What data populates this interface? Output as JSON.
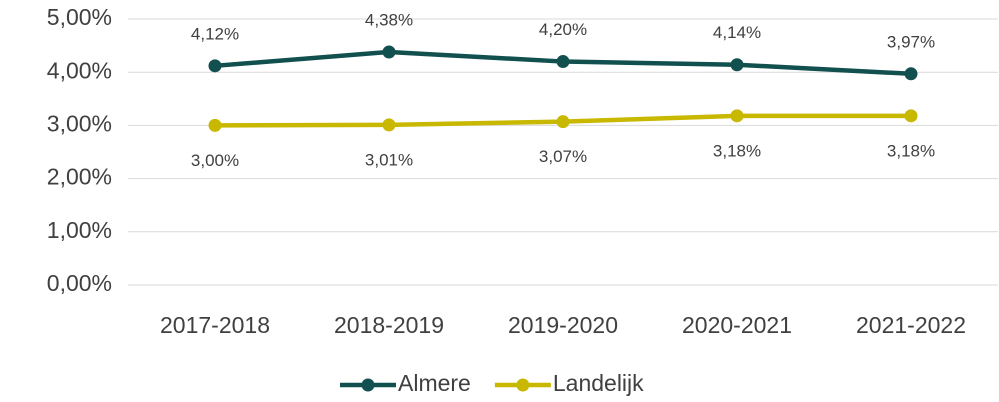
{
  "chart_data": {
    "type": "line",
    "categories": [
      "2017-2018",
      "2018-2019",
      "2019-2020",
      "2020-2021",
      "2021-2022"
    ],
    "series": [
      {
        "name": "Almere",
        "color": "#124f4f",
        "values": [
          4.12,
          4.38,
          4.2,
          4.14,
          3.97
        ],
        "value_labels": [
          "4,12%",
          "4,38%",
          "4,20%",
          "4,14%",
          "3,97%"
        ]
      },
      {
        "name": "Landelijk",
        "color": "#c9b800",
        "values": [
          3.0,
          3.01,
          3.07,
          3.18,
          3.18
        ],
        "value_labels": [
          "3,00%",
          "3,01%",
          "3,07%",
          "3,18%",
          "3,18%"
        ]
      }
    ],
    "ylim": [
      0,
      5
    ],
    "yticks": [
      {
        "value": 0,
        "label": "0,00%"
      },
      {
        "value": 1,
        "label": "1,00%"
      },
      {
        "value": 2,
        "label": "2,00%"
      },
      {
        "value": 3,
        "label": "3,00%"
      },
      {
        "value": 4,
        "label": "4,00%"
      },
      {
        "value": 5,
        "label": "5,00%"
      }
    ],
    "grid": true,
    "legend": "bottom"
  }
}
